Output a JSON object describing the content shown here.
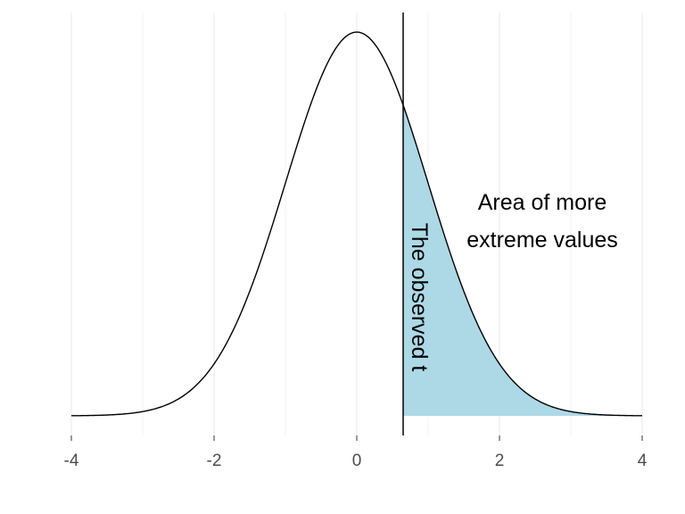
{
  "chart_data": {
    "type": "area",
    "title": "",
    "xlabel": "",
    "ylabel": "",
    "xlim": [
      -4,
      4
    ],
    "ylim": [
      0,
      0.4
    ],
    "x_ticks": [
      -4,
      -2,
      0,
      2,
      4
    ],
    "x_tick_labels": [
      "-4",
      "-2",
      "0",
      "2",
      "4"
    ],
    "grid": "vertical major and minor gridlines only",
    "curve": "standard normal density, mean 0, sd 1",
    "observed_t": 0.65,
    "shaded_region": {
      "from": 0.65,
      "to": 4
    },
    "annotations": {
      "vline_label": "The observed t",
      "area_label_line1": "Area of more",
      "area_label_line2": "extreme values"
    },
    "colors": {
      "fill": "#add8e6",
      "curve": "#000000",
      "grid": "#ebebeb",
      "tick_text": "#4d4d4d"
    }
  }
}
